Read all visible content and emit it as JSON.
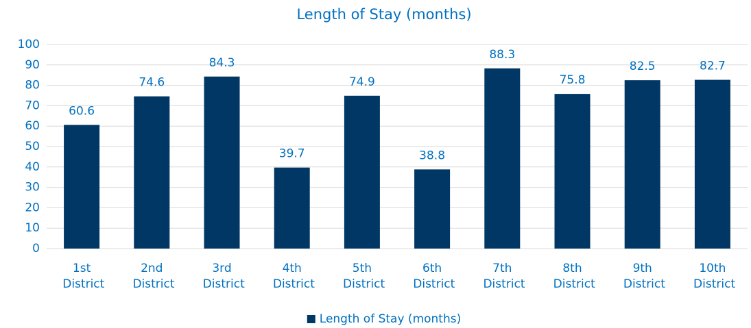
{
  "chart_data": {
    "type": "bar",
    "title": "Length of Stay (months)",
    "categories": [
      "1st District",
      "2nd District",
      "3rd District",
      "4th District",
      "5th District",
      "6th District",
      "7th District",
      "8th District",
      "9th District",
      "10th District"
    ],
    "series": [
      {
        "name": "Length of Stay (months)",
        "color": "#003764",
        "values": [
          60.6,
          74.6,
          84.3,
          39.7,
          74.9,
          38.8,
          88.3,
          75.8,
          82.5,
          82.7
        ]
      }
    ],
    "ylim": [
      0,
      100
    ],
    "yticks": [
      0,
      10,
      20,
      30,
      40,
      50,
      60,
      70,
      80,
      90,
      100
    ],
    "grid": true,
    "legend": "bottom"
  }
}
